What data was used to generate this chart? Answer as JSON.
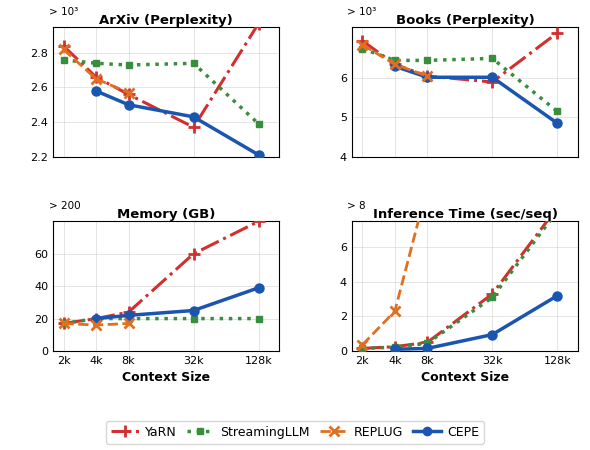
{
  "x_ticks": [
    2000,
    4000,
    8000,
    32000,
    128000
  ],
  "x_tick_labels": [
    "2k",
    "4k",
    "8k",
    "32k",
    "128k"
  ],
  "arxiv": {
    "title": "ArXiv (Perplexity)",
    "ylabel_prefix": "> 10³",
    "ylim": [
      2.2,
      2.95
    ],
    "yticks": [
      2.2,
      2.4,
      2.6,
      2.8
    ],
    "yarn": [
      2.84,
      2.66,
      2.56,
      2.37,
      2.97
    ],
    "streaming": [
      2.76,
      2.74,
      2.73,
      2.74,
      2.39
    ],
    "replug": [
      2.82,
      2.65,
      2.57,
      null,
      null
    ],
    "cepe": [
      null,
      2.58,
      2.5,
      2.43,
      2.21
    ]
  },
  "books": {
    "title": "Books (Perplexity)",
    "ylabel_prefix": "> 10³",
    "ylim": [
      4.0,
      7.3
    ],
    "yticks": [
      4,
      5,
      6
    ],
    "yarn": [
      6.95,
      6.35,
      6.05,
      5.9,
      7.15
    ],
    "streaming": [
      6.75,
      6.45,
      6.45,
      6.5,
      5.15
    ],
    "replug": [
      6.85,
      6.35,
      6.05,
      null,
      null
    ],
    "cepe": [
      null,
      6.3,
      6.02,
      6.02,
      4.85
    ]
  },
  "memory": {
    "title": "Memory (GB)",
    "ylabel_prefix": "> 200",
    "ylim": [
      0,
      80
    ],
    "yticks": [
      0,
      20,
      40,
      60
    ],
    "yarn": [
      17,
      20,
      24,
      60,
      80
    ],
    "streaming": [
      17,
      20,
      20,
      20,
      20
    ],
    "replug": [
      17,
      16,
      17,
      null,
      null
    ],
    "cepe": [
      null,
      20,
      22,
      25,
      39
    ]
  },
  "inference": {
    "title": "Inference Time (sec/seq)",
    "ylabel_prefix": "> 8",
    "ylim": [
      0,
      7.5
    ],
    "yticks": [
      0,
      2,
      4,
      6
    ],
    "yarn": [
      0.15,
      0.25,
      0.5,
      3.3,
      8.3
    ],
    "streaming": [
      0.15,
      0.22,
      0.45,
      3.1,
      8.1
    ],
    "replug": [
      0.35,
      2.3,
      9.5,
      null,
      null
    ],
    "cepe": [
      null,
      0.1,
      0.15,
      0.95,
      3.2
    ]
  },
  "yarn_color": "#d32f2f",
  "streaming_color": "#388e3c",
  "replug_color": "#e07020",
  "cepe_color": "#1a56b0",
  "xlabel": "Context Size"
}
